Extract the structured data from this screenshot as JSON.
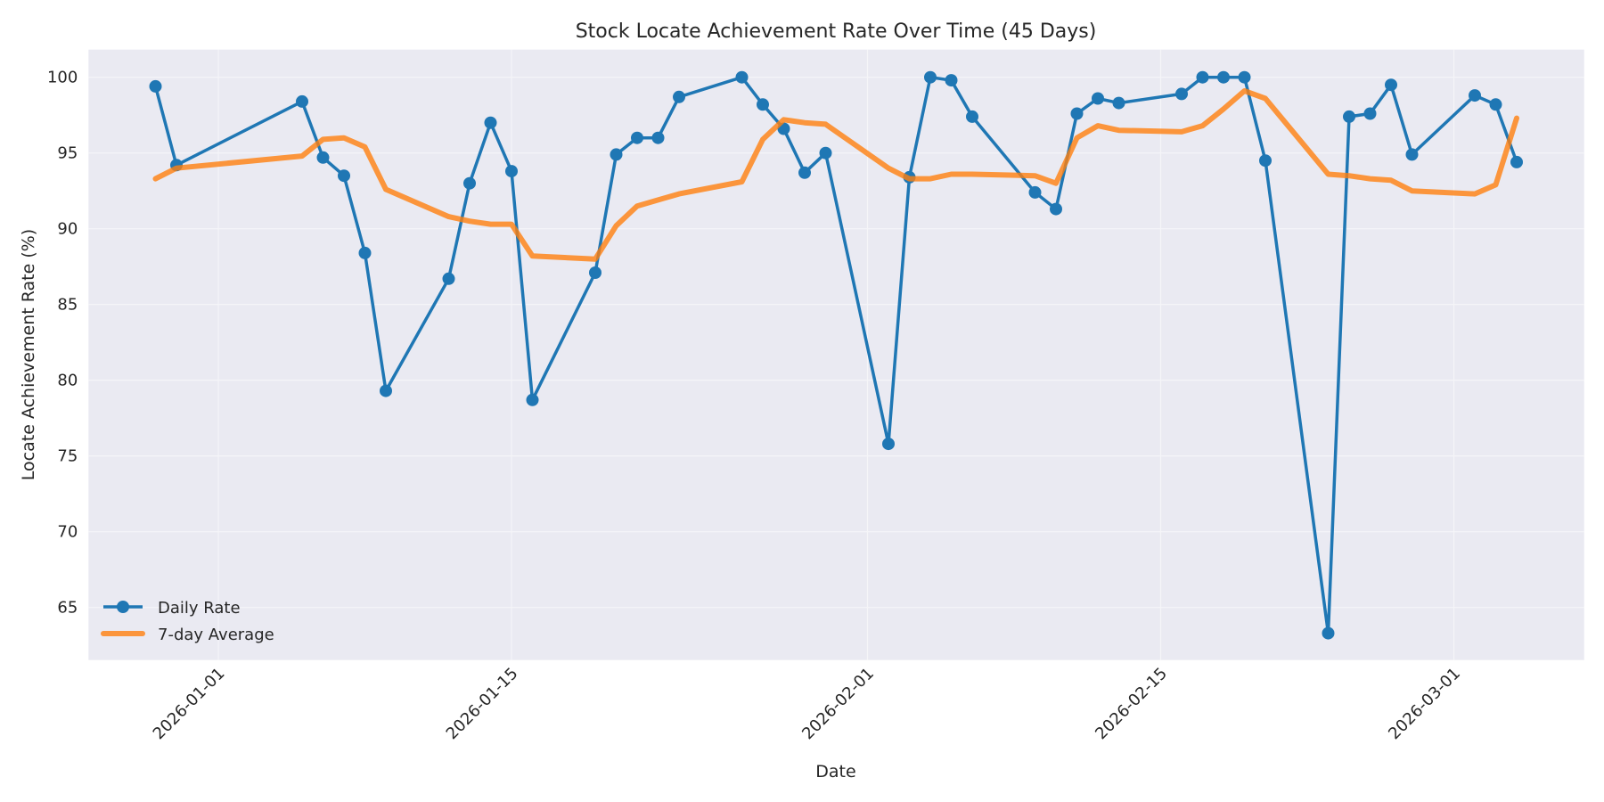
{
  "chart_data": {
    "type": "line",
    "title": "Stock Locate Achievement Rate Over Time (45 Days)",
    "xlabel": "Date",
    "ylabel": "Locate Achievement Rate (%)",
    "ylim": [
      61.6,
      101.9
    ],
    "yticks": [
      65,
      70,
      75,
      80,
      85,
      90,
      95,
      100
    ],
    "xticks": [
      "2026-01-01",
      "2026-01-15",
      "2026-02-01",
      "2026-02-15",
      "2026-03-01"
    ],
    "grid": true,
    "legend_position": "lower left",
    "x": [
      "2025-12-29",
      "2025-12-30",
      "2026-01-05",
      "2026-01-06",
      "2026-01-07",
      "2026-01-08",
      "2026-01-09",
      "2026-01-12",
      "2026-01-13",
      "2026-01-14",
      "2026-01-15",
      "2026-01-16",
      "2026-01-19",
      "2026-01-20",
      "2026-01-21",
      "2026-01-22",
      "2026-01-23",
      "2026-01-26",
      "2026-01-27",
      "2026-01-28",
      "2026-01-29",
      "2026-01-30",
      "2026-02-02",
      "2026-02-03",
      "2026-02-04",
      "2026-02-05",
      "2026-02-06",
      "2026-02-09",
      "2026-02-10",
      "2026-02-11",
      "2026-02-12",
      "2026-02-13",
      "2026-02-16",
      "2026-02-17",
      "2026-02-18",
      "2026-02-19",
      "2026-02-20",
      "2026-02-23",
      "2026-02-24",
      "2026-02-25",
      "2026-02-26",
      "2026-02-27",
      "2026-03-02",
      "2026-03-03",
      "2026-03-04"
    ],
    "series": [
      {
        "name": "Daily Rate",
        "color": "#1f77b4",
        "marker": "circle",
        "values": [
          99.4,
          94.2,
          98.4,
          94.7,
          93.5,
          88.4,
          79.3,
          86.7,
          93.0,
          97.0,
          93.8,
          78.7,
          87.1,
          94.9,
          96.0,
          96.0,
          98.7,
          100.0,
          98.2,
          96.6,
          93.7,
          95.0,
          75.8,
          93.4,
          100.0,
          99.8,
          97.4,
          92.4,
          91.3,
          97.6,
          98.6,
          98.3,
          98.9,
          100.0,
          100.0,
          100.0,
          94.5,
          63.3,
          97.4,
          97.6,
          99.5,
          94.9,
          98.8,
          98.2,
          94.4
        ]
      },
      {
        "name": "7-day Average",
        "color": "#ff7f0e",
        "marker": "none",
        "values": [
          93.3,
          94.0,
          94.8,
          95.9,
          96.0,
          95.4,
          92.6,
          90.8,
          90.5,
          90.3,
          90.3,
          88.2,
          88.0,
          90.2,
          91.5,
          91.9,
          92.3,
          93.1,
          95.9,
          97.2,
          97.0,
          96.9,
          94.0,
          93.3,
          93.3,
          93.6,
          93.6,
          93.5,
          93.0,
          96.0,
          96.8,
          96.5,
          96.4,
          96.8,
          97.9,
          99.1,
          98.6,
          93.6,
          93.5,
          93.3,
          93.2,
          92.5,
          92.3,
          92.9,
          97.3
        ]
      }
    ]
  },
  "colors": {
    "plot_background": "#eaeaf2",
    "grid": "#f5f5f8",
    "text": "#262626"
  }
}
